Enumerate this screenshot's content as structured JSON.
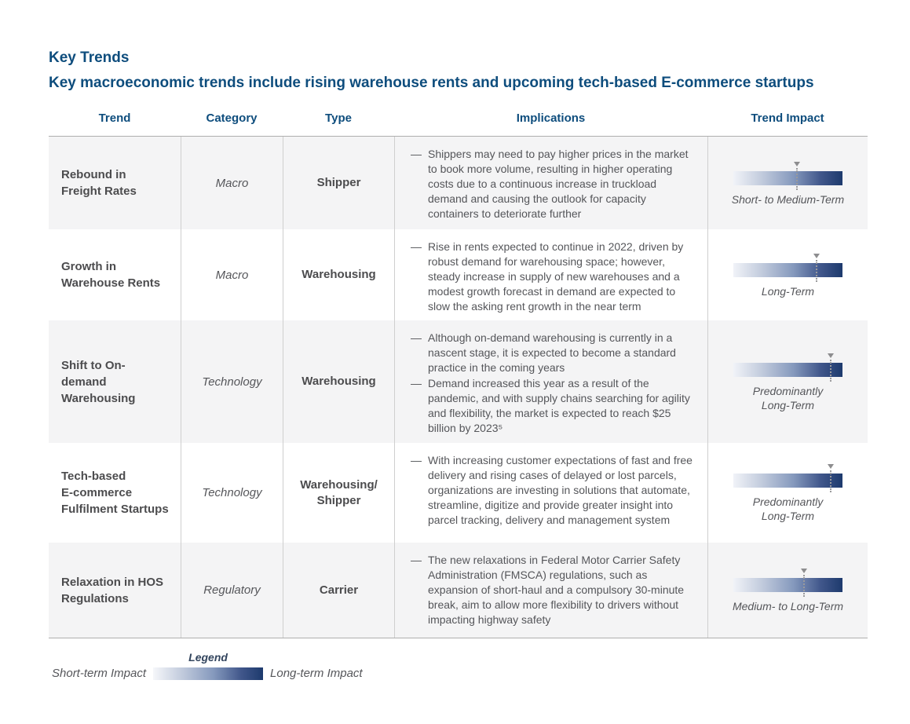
{
  "page": {
    "title": "Key Trends",
    "subtitle": "Key macroeconomic trends include rising warehouse rents and upcoming tech-based E-commerce startups"
  },
  "colors": {
    "heading_blue": "#0e4d7d",
    "gradient_start": "#f1f3f8",
    "gradient_end": "#1d3a6d",
    "marker_gray": "#8d8d8f",
    "body_text": "#55565a",
    "row_stripe": "#f4f4f5"
  },
  "table": {
    "headers": [
      "Trend",
      "Category",
      "Type",
      "Implications",
      "Trend Impact"
    ],
    "bullet_dash": "—",
    "rows": [
      {
        "trend": "Rebound in\nFreight Rates",
        "category": "Macro",
        "type": "Shipper",
        "implications": [
          "Shippers may need to pay higher prices in the market to book more volume, resulting in higher operating costs due to a continuous increase in truckload demand and causing the outlook for capacity containers to deteriorate further"
        ],
        "impact_label": "Short- to Medium-Term",
        "impact_marker_pct": 58
      },
      {
        "trend": "Growth in\nWarehouse Rents",
        "category": "Macro",
        "type": "Warehousing",
        "implications": [
          "Rise in rents expected to continue in 2022, driven by robust demand for warehousing space; however, steady increase in supply of new warehouses and a modest growth forecast in demand are expected to slow the asking rent growth in the near term"
        ],
        "impact_label": "Long-Term",
        "impact_marker_pct": 76
      },
      {
        "trend": "Shift to On-\ndemand\nWarehousing",
        "category": "Technology",
        "type": "Warehousing",
        "implications": [
          "Although on-demand warehousing is currently in a nascent stage, it is expected to become a standard practice in the coming years",
          "Demand increased this year as a result of the pandemic, and with supply chains searching for agility and flexibility, the market is expected to reach $25 billion by 2023⁵"
        ],
        "impact_label": "Predominantly\nLong-Term",
        "impact_marker_pct": 89
      },
      {
        "trend": "Tech-based\nE-commerce\nFulfilment Startups",
        "category": "Technology",
        "type": "Warehousing/\nShipper",
        "implications": [
          "With increasing customer expectations of fast and free delivery and rising cases of delayed or lost parcels, organizations are investing in solutions that automate, streamline, digitize and provide greater insight into parcel tracking, delivery and management system"
        ],
        "impact_label": "Predominantly\nLong-Term",
        "impact_marker_pct": 89
      },
      {
        "trend": "Relaxation in HOS\nRegulations",
        "category": "Regulatory",
        "type": "Carrier",
        "implications": [
          "The new relaxations in Federal Motor Carrier Safety Administration (FMSCA) regulations, such as expansion of short-haul and a compulsory 30-minute break, aim to allow more flexibility to drivers without impacting highway safety"
        ],
        "impact_label": "Medium- to Long-Term",
        "impact_marker_pct": 65
      }
    ]
  },
  "legend": {
    "title": "Legend",
    "left_label": "Short-term Impact",
    "right_label": "Long-term Impact"
  }
}
